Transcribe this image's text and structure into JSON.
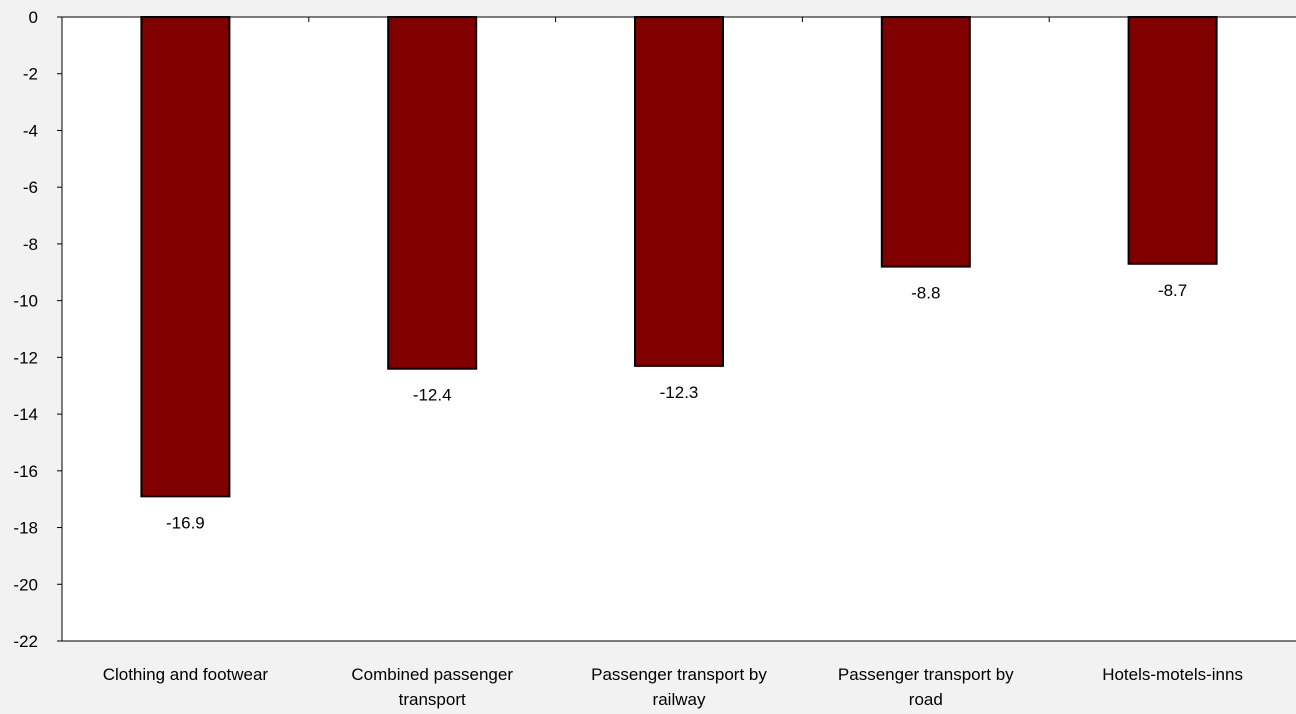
{
  "chart_data": {
    "type": "bar",
    "categories": [
      [
        "Clothing and footwear"
      ],
      [
        "Combined passenger",
        "transport"
      ],
      [
        "Passenger transport by",
        "railway"
      ],
      [
        "Passenger transport by",
        "road"
      ],
      [
        "Hotels-motels-inns"
      ]
    ],
    "values": [
      -16.9,
      -12.4,
      -12.3,
      -8.8,
      -8.7
    ],
    "data_labels": [
      "-16.9",
      "-12.4",
      "-12.3",
      "-8.8",
      "-8.7"
    ],
    "ylim": [
      -22,
      0
    ],
    "yticks": [
      0,
      -2,
      -4,
      -6,
      -8,
      -10,
      -12,
      -14,
      -16,
      -18,
      -20,
      -22
    ],
    "grid": false,
    "title": "",
    "xlabel": "",
    "ylabel": "",
    "colors": {
      "bar": "#800000",
      "bar_stroke": "#000000",
      "plot_background": "#ffffff",
      "page_background": "#f2f2f2"
    }
  }
}
